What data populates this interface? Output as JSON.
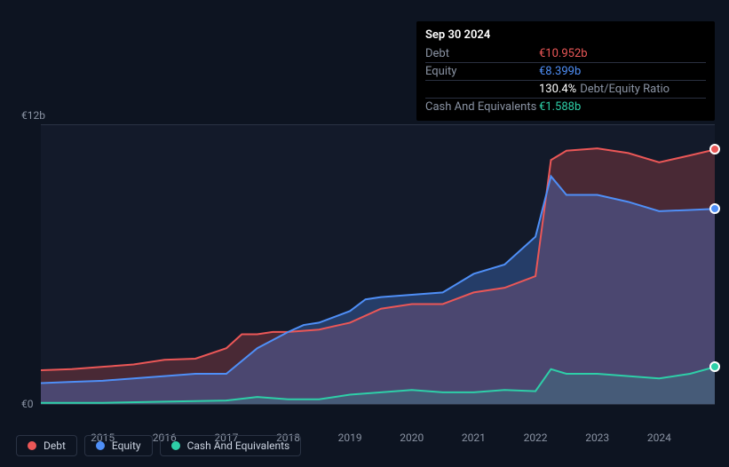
{
  "tooltip": {
    "date": "Sep 30 2024",
    "rows": [
      {
        "label": "Debt",
        "value": "€10.952b",
        "color": "#eb5757",
        "suffix": ""
      },
      {
        "label": "Equity",
        "value": "€8.399b",
        "color": "#4f8ff7",
        "suffix": ""
      },
      {
        "label": "",
        "value": "130.4%",
        "color": "#ffffff",
        "suffix": "Debt/Equity Ratio"
      },
      {
        "label": "Cash And Equivalents",
        "value": "€1.588b",
        "color": "#2ecfa8",
        "suffix": ""
      }
    ]
  },
  "chart": {
    "type": "area",
    "background_color": "#131a2a",
    "grid_color": "#2a3344",
    "ylim": [
      0,
      12
    ],
    "yticks": [
      {
        "value": 0,
        "label": "€0"
      },
      {
        "value": 12,
        "label": "€12b"
      }
    ],
    "xrange": [
      2014.0,
      2024.9
    ],
    "xticks": [
      2015,
      2016,
      2017,
      2018,
      2019,
      2020,
      2021,
      2022,
      2023,
      2024
    ],
    "series": {
      "debt": {
        "label": "Debt",
        "color": "#eb5757",
        "fill_opacity": 0.25,
        "line_width": 2,
        "points": [
          [
            2014.0,
            1.45
          ],
          [
            2014.5,
            1.5
          ],
          [
            2015.0,
            1.6
          ],
          [
            2015.5,
            1.7
          ],
          [
            2016.0,
            1.9
          ],
          [
            2016.5,
            1.95
          ],
          [
            2017.0,
            2.4
          ],
          [
            2017.25,
            3.0
          ],
          [
            2017.5,
            3.0
          ],
          [
            2017.75,
            3.1
          ],
          [
            2018.0,
            3.1
          ],
          [
            2018.5,
            3.2
          ],
          [
            2019.0,
            3.5
          ],
          [
            2019.5,
            4.1
          ],
          [
            2020.0,
            4.3
          ],
          [
            2020.5,
            4.3
          ],
          [
            2021.0,
            4.8
          ],
          [
            2021.5,
            5.0
          ],
          [
            2022.0,
            5.5
          ],
          [
            2022.25,
            10.5
          ],
          [
            2022.5,
            10.9
          ],
          [
            2023.0,
            11.0
          ],
          [
            2023.5,
            10.8
          ],
          [
            2024.0,
            10.4
          ],
          [
            2024.5,
            10.7
          ],
          [
            2024.9,
            10.95
          ]
        ]
      },
      "equity": {
        "label": "Equity",
        "color": "#4f8ff7",
        "fill_opacity": 0.3,
        "line_width": 2,
        "points": [
          [
            2014.0,
            0.9
          ],
          [
            2014.5,
            0.95
          ],
          [
            2015.0,
            1.0
          ],
          [
            2015.5,
            1.1
          ],
          [
            2016.0,
            1.2
          ],
          [
            2016.5,
            1.3
          ],
          [
            2017.0,
            1.3
          ],
          [
            2017.5,
            2.4
          ],
          [
            2018.0,
            3.1
          ],
          [
            2018.25,
            3.4
          ],
          [
            2018.5,
            3.5
          ],
          [
            2019.0,
            4.0
          ],
          [
            2019.25,
            4.5
          ],
          [
            2019.5,
            4.6
          ],
          [
            2020.0,
            4.7
          ],
          [
            2020.5,
            4.8
          ],
          [
            2021.0,
            5.6
          ],
          [
            2021.5,
            6.0
          ],
          [
            2022.0,
            7.2
          ],
          [
            2022.25,
            9.8
          ],
          [
            2022.5,
            9.0
          ],
          [
            2023.0,
            9.0
          ],
          [
            2023.5,
            8.7
          ],
          [
            2024.0,
            8.3
          ],
          [
            2024.5,
            8.35
          ],
          [
            2024.9,
            8.4
          ]
        ]
      },
      "cash": {
        "label": "Cash And Equivalents",
        "color": "#2ecfa8",
        "fill_opacity": 0.15,
        "line_width": 2,
        "points": [
          [
            2014.0,
            0.05
          ],
          [
            2015.0,
            0.05
          ],
          [
            2016.0,
            0.1
          ],
          [
            2017.0,
            0.15
          ],
          [
            2017.5,
            0.3
          ],
          [
            2018.0,
            0.2
          ],
          [
            2018.5,
            0.2
          ],
          [
            2019.0,
            0.4
          ],
          [
            2019.5,
            0.5
          ],
          [
            2020.0,
            0.6
          ],
          [
            2020.5,
            0.5
          ],
          [
            2021.0,
            0.5
          ],
          [
            2021.5,
            0.6
          ],
          [
            2022.0,
            0.55
          ],
          [
            2022.25,
            1.5
          ],
          [
            2022.5,
            1.3
          ],
          [
            2023.0,
            1.3
          ],
          [
            2023.5,
            1.2
          ],
          [
            2024.0,
            1.1
          ],
          [
            2024.5,
            1.3
          ],
          [
            2024.9,
            1.59
          ]
        ]
      }
    },
    "markers_at_end": true
  },
  "legend_items": [
    {
      "key": "debt",
      "label": "Debt",
      "color": "#eb5757"
    },
    {
      "key": "equity",
      "label": "Equity",
      "color": "#4f8ff7"
    },
    {
      "key": "cash",
      "label": "Cash And Equivalents",
      "color": "#2ecfa8"
    }
  ]
}
